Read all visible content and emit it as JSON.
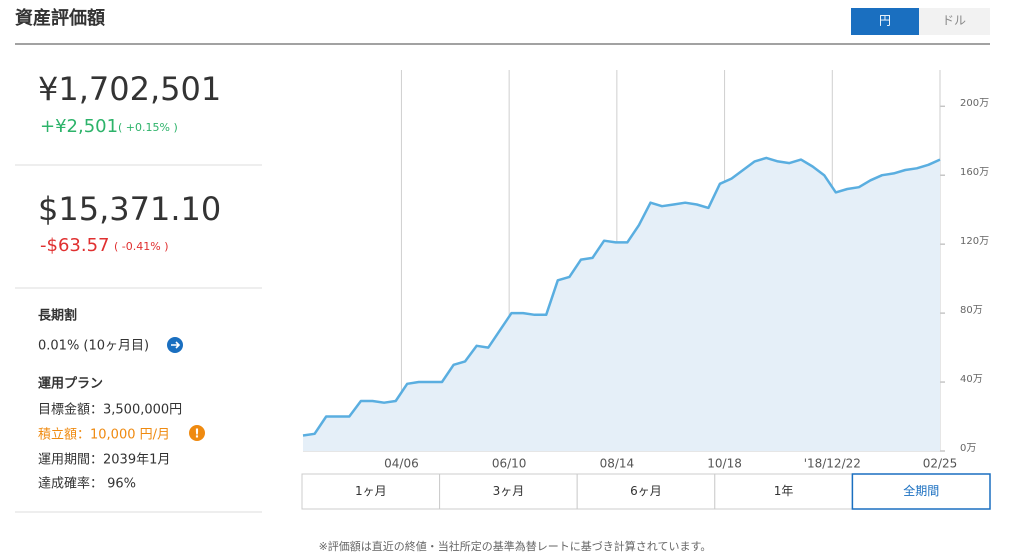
{
  "header": {
    "title": "資産評価額",
    "currency_toggle": [
      "円",
      "ドル"
    ]
  },
  "summary": {
    "jpy": {
      "value": "¥1,702,501",
      "change": "+¥2,501",
      "change_pct": "( +0.15% )"
    },
    "usd": {
      "value": "$15,371.10",
      "change": "-$63.57",
      "change_pct": "( -0.41% )"
    }
  },
  "long_term_discount": {
    "title": "長期割",
    "rate": "0.01% (10ヶ月目)"
  },
  "plan": {
    "title": "運用プラン",
    "items": [
      "目標金額：3,500,000円",
      "積立額：10,000 円/月",
      "運用期間：2039年1月",
      "達成確率： 96%"
    ],
    "warning": "!"
  },
  "period_buttons": [
    "1ヶ月",
    "3ヶ月",
    "6ヶ月",
    "1年",
    "全期間"
  ],
  "chart_data": {
    "type": "area",
    "color": "#5aaee0",
    "grid": true,
    "values": [
      9,
      10,
      20,
      20,
      20,
      29,
      29,
      28,
      29,
      39,
      40,
      40,
      40,
      50,
      52,
      61,
      60,
      70,
      80,
      80,
      79,
      79,
      99,
      101,
      111,
      112,
      122,
      121,
      121,
      131,
      144,
      142,
      143,
      144,
      143,
      141,
      155,
      158,
      163,
      168,
      170,
      168,
      167,
      169,
      165,
      160,
      150,
      152,
      153,
      157,
      160,
      161,
      163,
      164,
      166,
      169
    ],
    "xlim": [
      0,
      55
    ],
    "xticks": [
      {
        "value": 8.5,
        "label": "04/06"
      },
      {
        "value": 17.8,
        "label": "06/10"
      },
      {
        "value": 27.1,
        "label": "08/14"
      },
      {
        "value": 36.4,
        "label": "10/18"
      },
      {
        "value": 45.7,
        "label": "'18/12/22"
      },
      {
        "value": 55,
        "label": "02/25"
      }
    ],
    "ylim": [
      0,
      221
    ],
    "yticks": [
      {
        "value": 0,
        "label": "0万"
      },
      {
        "value": 40,
        "label": "40万"
      },
      {
        "value": 80,
        "label": "80万"
      },
      {
        "value": 120,
        "label": "120万"
      },
      {
        "value": 160,
        "label": "160万"
      },
      {
        "value": 200,
        "label": "200万"
      }
    ]
  },
  "footnote": "※評価額は直近の終値・当社所定の基準為替レートに基づき計算されています。"
}
